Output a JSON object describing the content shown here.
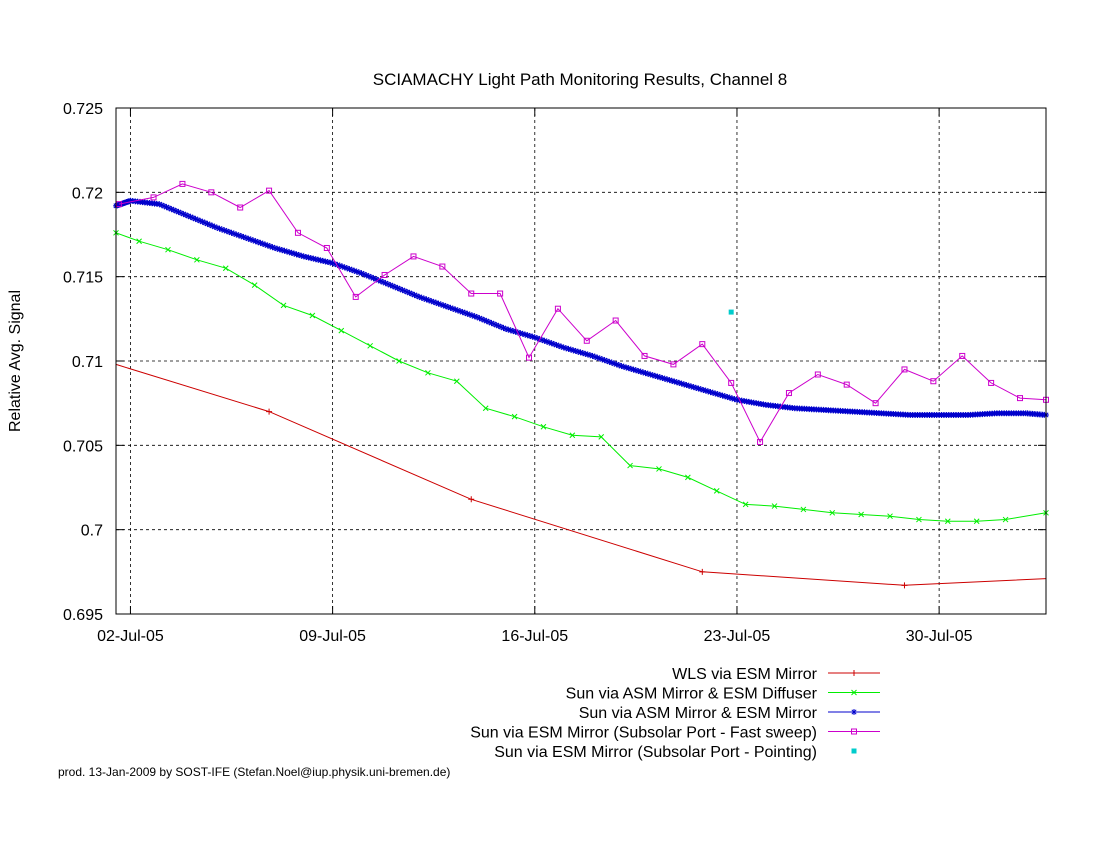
{
  "chart_data": {
    "type": "line",
    "title": "SCIAMACHY Light Path Monitoring Results, Channel 8",
    "xlabel": "",
    "ylabel": "Relative Avg. Signal",
    "xlim": [
      -0.5,
      31.7
    ],
    "ylim": [
      0.695,
      0.725
    ],
    "x_ticks": [
      {
        "value": 0,
        "label": "02-Jul-05"
      },
      {
        "value": 7,
        "label": "09-Jul-05"
      },
      {
        "value": 14,
        "label": "16-Jul-05"
      },
      {
        "value": 21,
        "label": "23-Jul-05"
      },
      {
        "value": 28,
        "label": "30-Jul-05"
      }
    ],
    "y_ticks": [
      {
        "value": 0.695,
        "label": "0.695"
      },
      {
        "value": 0.7,
        "label": "0.7"
      },
      {
        "value": 0.705,
        "label": "0.705"
      },
      {
        "value": 0.71,
        "label": "0.71"
      },
      {
        "value": 0.715,
        "label": "0.715"
      },
      {
        "value": 0.72,
        "label": "0.72"
      },
      {
        "value": 0.725,
        "label": "0.725"
      }
    ],
    "grid": true,
    "legend_position": "below-right",
    "series": [
      {
        "name": "WLS via ESM Mirror",
        "color": "#cc0000",
        "marker": "plus",
        "points": [
          [
            -0.5,
            0.7098
          ],
          [
            4.8,
            0.707
          ],
          [
            11.8,
            0.7018
          ],
          [
            19.8,
            0.6975
          ],
          [
            26.8,
            0.6967
          ],
          [
            31.7,
            0.6971
          ]
        ],
        "mark_points": [
          [
            4.8,
            0.707
          ],
          [
            11.8,
            0.7018
          ],
          [
            19.8,
            0.6975
          ],
          [
            26.8,
            0.6967
          ]
        ]
      },
      {
        "name": "Sun via ASM Mirror & ESM Diffuser",
        "color": "#00ee00",
        "marker": "cross",
        "points": [
          [
            -0.5,
            0.7176
          ],
          [
            0.3,
            0.7171
          ],
          [
            1.3,
            0.7166
          ],
          [
            2.3,
            0.716
          ],
          [
            3.3,
            0.7155
          ],
          [
            4.3,
            0.7145
          ],
          [
            5.3,
            0.7133
          ],
          [
            6.3,
            0.7127
          ],
          [
            7.3,
            0.7118
          ],
          [
            8.3,
            0.7109
          ],
          [
            9.3,
            0.71
          ],
          [
            10.3,
            0.7093
          ],
          [
            11.3,
            0.7088
          ],
          [
            12.3,
            0.7072
          ],
          [
            13.3,
            0.7067
          ],
          [
            14.3,
            0.7061
          ],
          [
            15.3,
            0.7056
          ],
          [
            16.3,
            0.7055
          ],
          [
            17.3,
            0.7038
          ],
          [
            18.3,
            0.7036
          ],
          [
            19.3,
            0.7031
          ],
          [
            20.3,
            0.7023
          ],
          [
            21.3,
            0.7015
          ],
          [
            22.3,
            0.7014
          ],
          [
            23.3,
            0.7012
          ],
          [
            24.3,
            0.701
          ],
          [
            25.3,
            0.7009
          ],
          [
            26.3,
            0.7008
          ],
          [
            27.3,
            0.7006
          ],
          [
            28.3,
            0.7005
          ],
          [
            29.3,
            0.7005
          ],
          [
            30.3,
            0.7006
          ],
          [
            31.7,
            0.701
          ]
        ]
      },
      {
        "name": "Sun via ASM Mirror & ESM Mirror",
        "color": "#0000cc",
        "marker": "star",
        "dense": true,
        "points": [
          [
            -0.5,
            0.7192
          ],
          [
            0,
            0.7195
          ],
          [
            1,
            0.7193
          ],
          [
            2,
            0.7186
          ],
          [
            3,
            0.7179
          ],
          [
            4,
            0.7173
          ],
          [
            5,
            0.7167
          ],
          [
            6,
            0.7162
          ],
          [
            7,
            0.7158
          ],
          [
            8,
            0.7152
          ],
          [
            9,
            0.7145
          ],
          [
            10,
            0.7138
          ],
          [
            11,
            0.7132
          ],
          [
            12,
            0.7126
          ],
          [
            13,
            0.7119
          ],
          [
            14,
            0.7114
          ],
          [
            15,
            0.7108
          ],
          [
            16,
            0.7103
          ],
          [
            17,
            0.7097
          ],
          [
            18,
            0.7092
          ],
          [
            19,
            0.7087
          ],
          [
            20,
            0.7082
          ],
          [
            21,
            0.7077
          ],
          [
            22,
            0.7074
          ],
          [
            23,
            0.7072
          ],
          [
            24,
            0.7071
          ],
          [
            25,
            0.707
          ],
          [
            26,
            0.7069
          ],
          [
            27,
            0.7068
          ],
          [
            28,
            0.7068
          ],
          [
            29,
            0.7068
          ],
          [
            30,
            0.7069
          ],
          [
            31,
            0.7069
          ],
          [
            31.7,
            0.7068
          ]
        ]
      },
      {
        "name": "Sun via ESM Mirror (Subsolar Port - Fast sweep)",
        "color": "#cc00cc",
        "marker": "square",
        "points": [
          [
            -0.4,
            0.7193
          ],
          [
            0.8,
            0.7197
          ],
          [
            1.8,
            0.7205
          ],
          [
            2.8,
            0.72
          ],
          [
            3.8,
            0.7191
          ],
          [
            4.8,
            0.7201
          ],
          [
            5.8,
            0.7176
          ],
          [
            6.8,
            0.7167
          ],
          [
            7.8,
            0.7138
          ],
          [
            8.8,
            0.7151
          ],
          [
            9.8,
            0.7162
          ],
          [
            10.8,
            0.7156
          ],
          [
            11.8,
            0.714
          ],
          [
            12.8,
            0.714
          ],
          [
            13.8,
            0.7102
          ],
          [
            14.8,
            0.7131
          ],
          [
            15.8,
            0.7112
          ],
          [
            16.8,
            0.7124
          ],
          [
            17.8,
            0.7103
          ],
          [
            18.8,
            0.7098
          ],
          [
            19.8,
            0.711
          ],
          [
            20.8,
            0.7087
          ],
          [
            21.8,
            0.7052
          ],
          [
            22.8,
            0.7081
          ],
          [
            23.8,
            0.7092
          ],
          [
            24.8,
            0.7086
          ],
          [
            25.8,
            0.7075
          ],
          [
            26.8,
            0.7095
          ],
          [
            27.8,
            0.7088
          ],
          [
            28.8,
            0.7103
          ],
          [
            29.8,
            0.7087
          ],
          [
            30.8,
            0.7078
          ],
          [
            31.7,
            0.7077
          ]
        ]
      },
      {
        "name": "Sun via ESM Mirror (Subsolar Port - Pointing)",
        "color": "#00cccc",
        "marker": "dot",
        "points_only": true,
        "points": [
          [
            20.8,
            0.7129
          ]
        ]
      }
    ]
  },
  "footer": "prod. 13-Jan-2009 by SOST-IFE (Stefan.Noel@iup.physik.uni-bremen.de)"
}
